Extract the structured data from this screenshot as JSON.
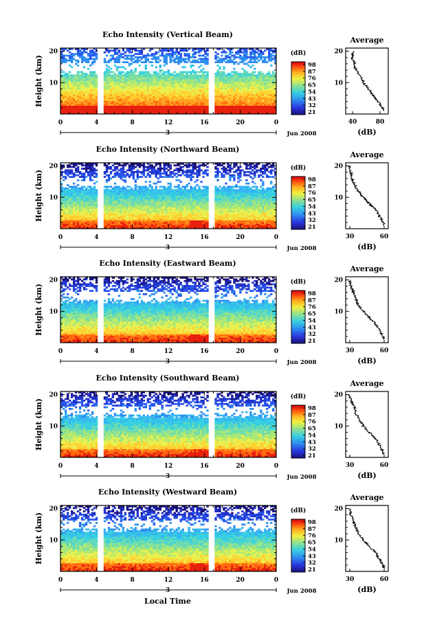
{
  "figure": {
    "x_axis_title": "Local Time"
  },
  "chart_data": [
    {
      "type": "heatmap",
      "title": "Echo Intensity (Vertical Beam)",
      "ylabel": "Height (km)",
      "ylim": [
        0,
        20
      ],
      "y_ticks": [
        "20",
        "10"
      ],
      "x_ticks": [
        "0",
        "4",
        "8",
        "12",
        "16",
        "20",
        "0"
      ],
      "date_marker": "3",
      "date_label": "Jun 2008",
      "colorbar_unit": "(dB)",
      "colorbar_ticks": [
        "98",
        "87",
        "76",
        "65",
        "54",
        "43",
        "32",
        "21"
      ],
      "average_profile": {
        "title": "Average",
        "xlabel": "(dB)",
        "x_ticks": [
          "40",
          "80"
        ],
        "y_ticks": [
          "20",
          "10"
        ],
        "xlim": [
          30,
          90
        ],
        "heights_km": [
          20,
          18,
          16,
          14,
          12,
          10,
          8,
          6,
          4,
          2,
          1
        ],
        "values_db": [
          37,
          36,
          40,
          42,
          50,
          55,
          62,
          70,
          78,
          85,
          88
        ]
      }
    },
    {
      "type": "heatmap",
      "title": "Echo Intensity (Northward Beam)",
      "ylabel": "Height (km)",
      "ylim": [
        0,
        20
      ],
      "y_ticks": [
        "20",
        "10"
      ],
      "x_ticks": [
        "0",
        "4",
        "8",
        "12",
        "16",
        "20",
        "0"
      ],
      "date_marker": "3",
      "date_label": "Jun 2008",
      "colorbar_unit": "(dB)",
      "colorbar_ticks": [
        "98",
        "87",
        "76",
        "65",
        "54",
        "43",
        "32",
        "21"
      ],
      "average_profile": {
        "title": "Average",
        "xlabel": "(dB)",
        "x_ticks": [
          "30",
          "60"
        ],
        "y_ticks": [
          "20",
          "10"
        ],
        "xlim": [
          30,
          60
        ],
        "heights_km": [
          20,
          18,
          16,
          14,
          12,
          10,
          8,
          6,
          4,
          2,
          1
        ],
        "values_db": [
          31,
          32,
          33,
          35,
          38,
          42,
          47,
          52,
          55,
          58,
          59
        ]
      }
    },
    {
      "type": "heatmap",
      "title": "Echo Intensity (Eastward Beam)",
      "ylabel": "Height (km)",
      "ylim": [
        0,
        20
      ],
      "y_ticks": [
        "20",
        "10"
      ],
      "x_ticks": [
        "0",
        "4",
        "8",
        "12",
        "16",
        "20",
        "0"
      ],
      "date_marker": "3",
      "date_label": "Jun 2008",
      "colorbar_unit": "(dB)",
      "colorbar_ticks": [
        "98",
        "87",
        "76",
        "65",
        "54",
        "43",
        "32",
        "21"
      ],
      "average_profile": {
        "title": "Average",
        "xlabel": "(dB)",
        "x_ticks": [
          "30",
          "60"
        ],
        "y_ticks": [
          "20",
          "10"
        ],
        "xlim": [
          30,
          60
        ],
        "heights_km": [
          20,
          18,
          16,
          14,
          12,
          10,
          8,
          6,
          4,
          2,
          1
        ],
        "values_db": [
          31,
          32,
          34,
          36,
          38,
          42,
          47,
          52,
          55,
          58,
          59
        ]
      }
    },
    {
      "type": "heatmap",
      "title": "Echo Intensity (Southward Beam)",
      "ylabel": "Height (km)",
      "ylim": [
        0,
        20
      ],
      "y_ticks": [
        "20",
        "10"
      ],
      "x_ticks": [
        "0",
        "4",
        "8",
        "12",
        "16",
        "20",
        "0"
      ],
      "date_marker": "3",
      "date_label": "Jun 2008",
      "colorbar_unit": "(dB)",
      "colorbar_ticks": [
        "98",
        "87",
        "76",
        "65",
        "54",
        "43",
        "32",
        "21"
      ],
      "average_profile": {
        "title": "Average",
        "xlabel": "(dB)",
        "x_ticks": [
          "30",
          "60"
        ],
        "y_ticks": [
          "20",
          "10"
        ],
        "xlim": [
          30,
          60
        ],
        "heights_km": [
          20,
          18,
          16,
          14,
          12,
          10,
          8,
          6,
          4,
          2,
          1
        ],
        "values_db": [
          31,
          32,
          35,
          36,
          39,
          42,
          47,
          52,
          55,
          58,
          59
        ]
      }
    },
    {
      "type": "heatmap",
      "title": "Echo Intensity (Westward Beam)",
      "ylabel": "Height (km)",
      "ylim": [
        0,
        20
      ],
      "y_ticks": [
        "20",
        "10"
      ],
      "x_ticks": [
        "0",
        "4",
        "8",
        "12",
        "16",
        "20",
        "0"
      ],
      "date_marker": "3",
      "date_label": "Jun 2008",
      "colorbar_unit": "(dB)",
      "colorbar_ticks": [
        "98",
        "87",
        "76",
        "65",
        "54",
        "43",
        "32",
        "21"
      ],
      "average_profile": {
        "title": "Average",
        "xlabel": "(dB)",
        "x_ticks": [
          "30",
          "60"
        ],
        "y_ticks": [
          "20",
          "10"
        ],
        "xlim": [
          30,
          60
        ],
        "heights_km": [
          20,
          18,
          16,
          14,
          12,
          10,
          8,
          6,
          4,
          2,
          1
        ],
        "values_db": [
          31,
          32,
          34,
          36,
          38,
          42,
          47,
          52,
          55,
          58,
          59
        ]
      }
    }
  ]
}
